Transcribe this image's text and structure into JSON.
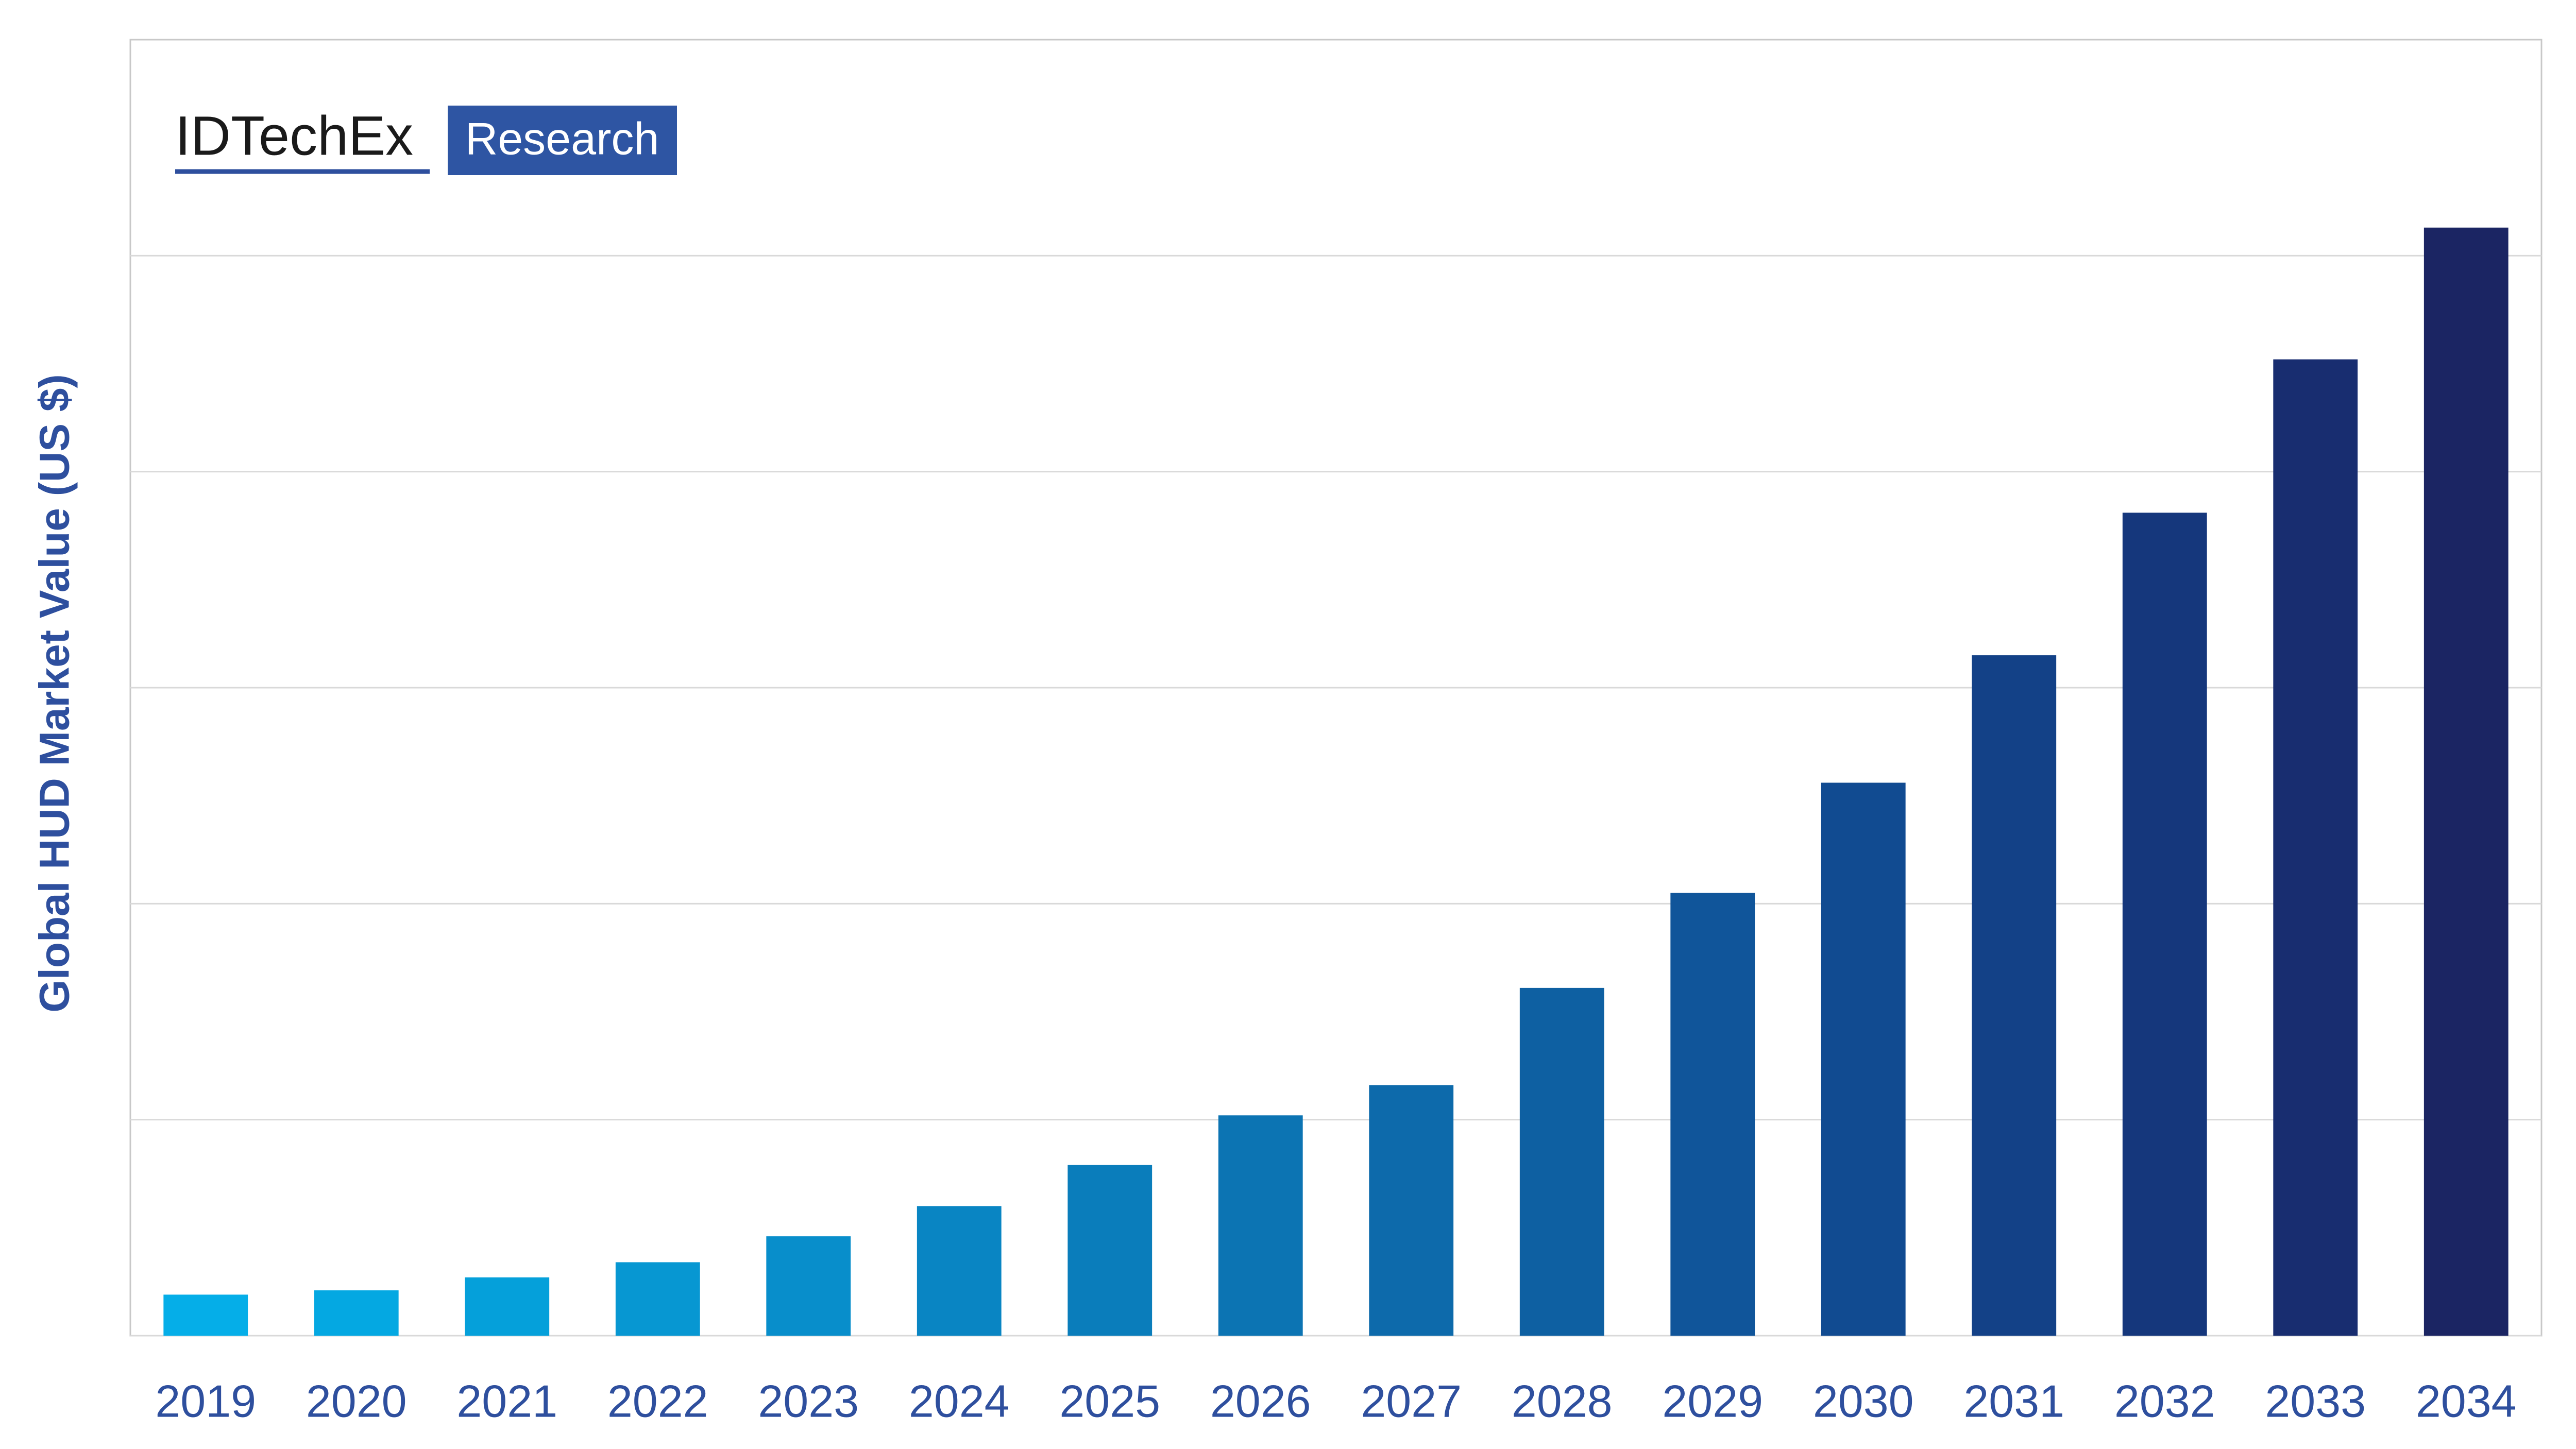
{
  "chart_data": {
    "type": "bar",
    "logo_name": "IDTechEx",
    "logo_tag": "Research",
    "y_label": "Global HUD Market Value (US $)",
    "categories": [
      "2019",
      "2020",
      "2021",
      "2022",
      "2023",
      "2024",
      "2025",
      "2026",
      "2027",
      "2028",
      "2029",
      "2030",
      "2031",
      "2032",
      "2033",
      "2034"
    ],
    "values": [
      0.19,
      0.21,
      0.27,
      0.34,
      0.46,
      0.6,
      0.79,
      1.02,
      1.16,
      1.61,
      2.05,
      2.56,
      3.15,
      3.81,
      4.52,
      5.13
    ],
    "colors": [
      "#05aee8",
      "#04a8e2",
      "#05a0da",
      "#0797d2",
      "#088ecb",
      "#0985c3",
      "#0a7dbb",
      "#0c74b3",
      "#0d6aab",
      "#0e60a2",
      "#10559a",
      "#114b91",
      "#134187",
      "#15377c",
      "#182d70",
      "#1b2563"
    ],
    "ylim": [
      0,
      6
    ],
    "yticks": [
      0,
      1,
      2,
      3,
      4,
      5
    ],
    "ytick_labels": false,
    "grid": true
  }
}
